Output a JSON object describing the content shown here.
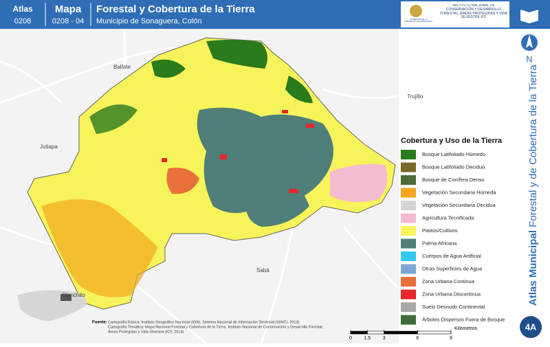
{
  "header": {
    "atlas_label": "Atlas",
    "atlas_code": "0208",
    "map_label": "Mapa",
    "map_code": "0208 - 04",
    "title": "Forestal y Cobertura de la Tierra",
    "subtitle": "Municipio de Sonaguera, Colón",
    "logo_left": "GOBIERNO DE LA REPÚBLICA DE HONDURAS",
    "logo_right": "INSTITUTO NACIONAL DE CONSERVACIÓN Y DESARROLLO FORESTAL, ÁREAS PROTEGIDAS Y VIDA SILVESTRE ICF"
  },
  "places": [
    "Balfate",
    "Trujillo",
    "Jutiapa",
    "Sabá",
    "Olanchito"
  ],
  "legend": {
    "title": "Cobertura y Uso de la Tierra",
    "items": [
      {
        "label": "Bosque Latifoliado Húmedo",
        "color": "#2a7a1e"
      },
      {
        "label": "Bosque Latifoliado Deciduo",
        "color": "#7a6a2a"
      },
      {
        "label": "Bosque de Conífera Denso",
        "color": "#4d6b3a"
      },
      {
        "label": "Vegetación Secundaria Húmeda",
        "color": "#f2a81d"
      },
      {
        "label": "Vegetación Secundaria Decidua",
        "color": "#d4d4d4"
      },
      {
        "label": "Agricultura Tecnificada",
        "color": "#f4bcd0"
      },
      {
        "label": "Pastos/Cultivos",
        "color": "#f7f35a"
      },
      {
        "label": "Palma Africana",
        "color": "#4f7f78"
      },
      {
        "label": "Cuerpos de Agua Artificial",
        "color": "#33c8ee"
      },
      {
        "label": "Otras Superficies de Agua",
        "color": "#7ea6d3"
      },
      {
        "label": "Zona Urbana Continua",
        "color": "#e8703a"
      },
      {
        "label": "Zona Urbana Discontinua",
        "color": "#e8262b"
      },
      {
        "label": "Suelo Desnudo Continental",
        "color": "#a8a8a8"
      },
      {
        "label": "Árboles Dispersos Fuera de Bosque",
        "color": "#3e6e3a"
      }
    ]
  },
  "side": {
    "bold": "Atlas Municipal",
    "rest": "Forestal y de Cobertura de la Tierra",
    "north": "N",
    "page": "4A"
  },
  "source": {
    "label": "Fuente:",
    "lines": [
      "Cartografía Básica: Instituto Geográfico Nacional (IGN), Sistema Nacional de Información Territorial (SINIT), 2013)",
      "Cartografía Temática: Mapa Nacional Forestal y Cobertura de la Tierra, Instituto Nacional de Conservación y Desarrollo Forestal,",
      "Áreas Protegidas y Vida Silvestre (ICF, 2014)"
    ]
  },
  "scale": {
    "ticks": [
      0,
      1.5,
      3,
      6,
      9
    ],
    "unit": "Kilómetros"
  }
}
